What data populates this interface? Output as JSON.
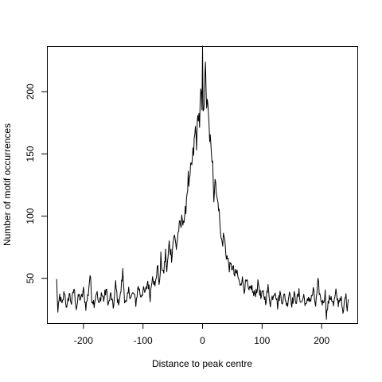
{
  "chart_data": {
    "type": "line",
    "title": "",
    "xlabel": "Distance to peak centre",
    "ylabel": "Number of motif occurrences",
    "xlim": [
      -260,
      260
    ],
    "ylim": [
      14,
      236
    ],
    "x_ticks": [
      -200,
      -100,
      0,
      100,
      200
    ],
    "y_ticks": [
      50,
      100,
      150,
      200
    ],
    "x_tick_labels": [
      "-200",
      "-100",
      "0",
      "100",
      "200"
    ],
    "y_tick_labels": [
      "50",
      "100",
      "150",
      "200"
    ],
    "grid": false,
    "legend": "none",
    "line_color": "#000000",
    "x_range": [
      -245,
      245
    ],
    "series": [
      {
        "anchors": [
          [
            -245,
            48
          ],
          [
            -243,
            22
          ],
          [
            -240,
            36
          ],
          [
            -236,
            28
          ],
          [
            -232,
            40
          ],
          [
            -228,
            25
          ],
          [
            -224,
            38
          ],
          [
            -220,
            30
          ],
          [
            -216,
            42
          ],
          [
            -212,
            26
          ],
          [
            -208,
            36
          ],
          [
            -204,
            33
          ],
          [
            -200,
            40
          ],
          [
            -196,
            27
          ],
          [
            -192,
            38
          ],
          [
            -189,
            53
          ],
          [
            -186,
            34
          ],
          [
            -182,
            30
          ],
          [
            -178,
            40
          ],
          [
            -174,
            28
          ],
          [
            -170,
            38
          ],
          [
            -166,
            33
          ],
          [
            -162,
            41
          ],
          [
            -158,
            29
          ],
          [
            -154,
            37
          ],
          [
            -150,
            26
          ],
          [
            -146,
            45
          ],
          [
            -142,
            30
          ],
          [
            -138,
            36
          ],
          [
            -134,
            55
          ],
          [
            -131,
            34
          ],
          [
            -128,
            29
          ],
          [
            -124,
            40
          ],
          [
            -120,
            35
          ],
          [
            -116,
            38
          ],
          [
            -112,
            30
          ],
          [
            -108,
            44
          ],
          [
            -104,
            36
          ],
          [
            -100,
            40
          ],
          [
            -96,
            38
          ],
          [
            -92,
            48
          ],
          [
            -88,
            35
          ],
          [
            -84,
            55
          ],
          [
            -80,
            42
          ],
          [
            -76,
            60
          ],
          [
            -72,
            45
          ],
          [
            -70,
            66
          ],
          [
            -66,
            52
          ],
          [
            -62,
            70
          ],
          [
            -60,
            55
          ],
          [
            -56,
            78
          ],
          [
            -52,
            68
          ],
          [
            -48,
            85
          ],
          [
            -44,
            75
          ],
          [
            -40,
            90
          ],
          [
            -36,
            92
          ],
          [
            -34,
            100
          ],
          [
            -30,
            95
          ],
          [
            -27,
            115
          ],
          [
            -24,
            130
          ],
          [
            -22,
            124
          ],
          [
            -20,
            135
          ],
          [
            -17,
            145
          ],
          [
            -15,
            152
          ],
          [
            -12,
            170
          ],
          [
            -10,
            160
          ],
          [
            -7,
            185
          ],
          [
            -5,
            175
          ],
          [
            -3,
            198
          ],
          [
            -1,
            185
          ],
          [
            0,
            229
          ],
          [
            1,
            190
          ],
          [
            3,
            195
          ],
          [
            5,
            218
          ],
          [
            7,
            190
          ],
          [
            9,
            185
          ],
          [
            11,
            170
          ],
          [
            13,
            160
          ],
          [
            15,
            145
          ],
          [
            17,
            150
          ],
          [
            19,
            115
          ],
          [
            21,
            130
          ],
          [
            23,
            125
          ],
          [
            26,
            105
          ],
          [
            28,
            112
          ],
          [
            30,
            85
          ],
          [
            33,
            78
          ],
          [
            36,
            85
          ],
          [
            39,
            72
          ],
          [
            42,
            65
          ],
          [
            46,
            58
          ],
          [
            50,
            60
          ],
          [
            54,
            52
          ],
          [
            58,
            55
          ],
          [
            62,
            45
          ],
          [
            66,
            50
          ],
          [
            70,
            42
          ],
          [
            74,
            47
          ],
          [
            78,
            38
          ],
          [
            82,
            44
          ],
          [
            86,
            36
          ],
          [
            90,
            40
          ],
          [
            94,
            46
          ],
          [
            98,
            34
          ],
          [
            102,
            38
          ],
          [
            106,
            32
          ],
          [
            110,
            42
          ],
          [
            114,
            30
          ],
          [
            118,
            36
          ],
          [
            122,
            41
          ],
          [
            126,
            28
          ],
          [
            130,
            38
          ],
          [
            134,
            32
          ],
          [
            138,
            36
          ],
          [
            142,
            28
          ],
          [
            146,
            40
          ],
          [
            150,
            30
          ],
          [
            154,
            36
          ],
          [
            158,
            32
          ],
          [
            162,
            38
          ],
          [
            166,
            30
          ],
          [
            170,
            36
          ],
          [
            174,
            27
          ],
          [
            178,
            35
          ],
          [
            182,
            32
          ],
          [
            186,
            40
          ],
          [
            190,
            28
          ],
          [
            194,
            46
          ],
          [
            198,
            34
          ],
          [
            202,
            30
          ],
          [
            206,
            38
          ],
          [
            208,
            20
          ],
          [
            212,
            32
          ],
          [
            216,
            36
          ],
          [
            220,
            28
          ],
          [
            224,
            38
          ],
          [
            228,
            30
          ],
          [
            232,
            36
          ],
          [
            236,
            20
          ],
          [
            240,
            38
          ],
          [
            243,
            27
          ],
          [
            245,
            34
          ]
        ]
      }
    ]
  }
}
